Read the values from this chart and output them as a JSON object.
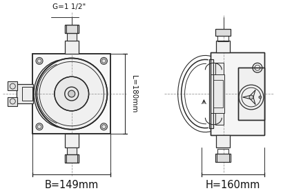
{
  "bg_color": "#ffffff",
  "lc": "#2a2a2a",
  "dc": "#999999",
  "tc": "#111111",
  "label_G": "G=1 1/2\"",
  "label_L": "L=180mm",
  "label_B": "B=149mm",
  "label_H": "H=160mm",
  "fig_width": 4.23,
  "fig_height": 2.8,
  "dpi": 100
}
